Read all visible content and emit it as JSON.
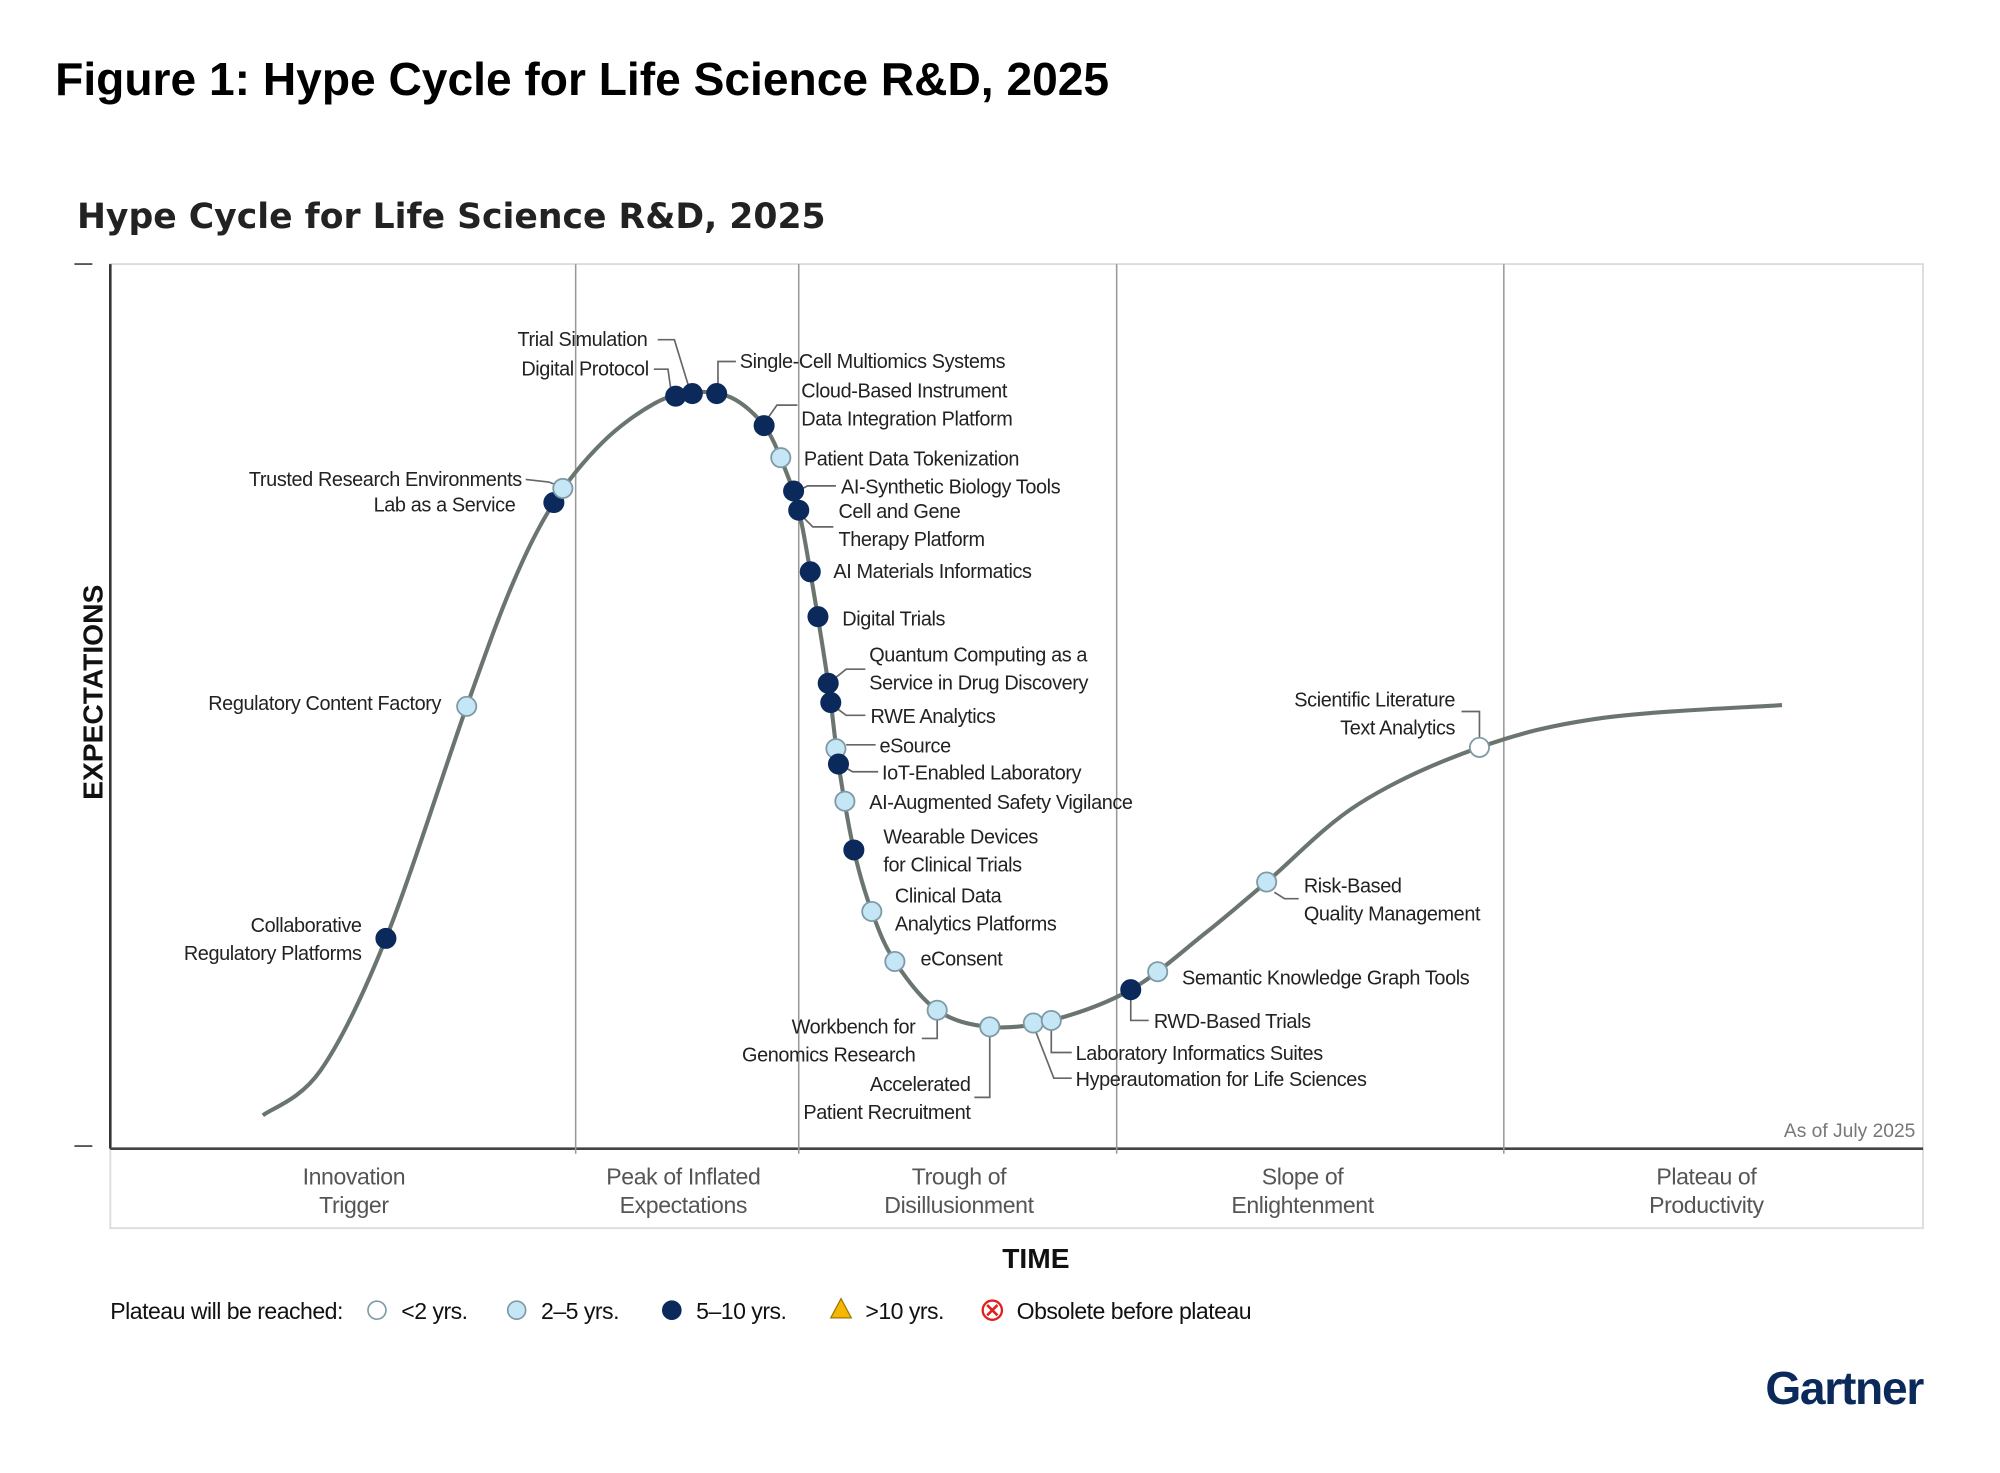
{
  "figure_title": "Figure 1: Hype Cycle for Life Science R&D, 2025",
  "brand": "Gartner",
  "chart_data": {
    "type": "scatter",
    "subtype": "hype-cycle",
    "title": "Hype Cycle for Life Science R&D, 2025",
    "xlabel": "TIME",
    "ylabel": "EXPECTATIONS",
    "annotation": "As of July 2025",
    "grid": false,
    "phases": [
      {
        "lines": [
          "Innovation",
          "Trigger"
        ]
      },
      {
        "lines": [
          "Peak of Inflated",
          "Expectations"
        ]
      },
      {
        "lines": [
          "Trough of",
          "Disillusionment"
        ]
      },
      {
        "lines": [
          "Slope of",
          "Enlightenment"
        ]
      },
      {
        "lines": [
          "Plateau of",
          "Productivity"
        ]
      }
    ],
    "legend": {
      "title": "Plateau will be reached:",
      "placement": "bottom",
      "entries": [
        {
          "key": "lt2",
          "label": "<2 yrs.",
          "symbol": "circle",
          "color": "#ffffff"
        },
        {
          "key": "2to5",
          "label": "2–5 yrs.",
          "symbol": "circle",
          "color": "#c5e6f5"
        },
        {
          "key": "5to10",
          "label": "5–10 yrs.",
          "symbol": "circle",
          "color": "#0b2a5b"
        },
        {
          "key": "gt10",
          "label": ">10 yrs.",
          "symbol": "triangle",
          "color": "#f5b800"
        },
        {
          "key": "obsolete",
          "label": "Obsolete before plateau",
          "symbol": "x-circle",
          "color": "#e02020"
        }
      ]
    },
    "items": [
      {
        "lines": [
          "Collaborative",
          "Regulatory Platforms"
        ],
        "phase": "Innovation Trigger",
        "plateau": "5to10"
      },
      {
        "lines": [
          "Regulatory Content Factory"
        ],
        "phase": "Innovation Trigger",
        "plateau": "2to5"
      },
      {
        "lines": [
          "Lab as a Service"
        ],
        "phase": "Innovation Trigger",
        "plateau": "5to10"
      },
      {
        "lines": [
          "Trusted Research Environments"
        ],
        "phase": "Innovation Trigger",
        "plateau": "2to5"
      },
      {
        "lines": [
          "Digital Protocol"
        ],
        "phase": "Peak of Inflated Expectations",
        "plateau": "5to10"
      },
      {
        "lines": [
          "Trial Simulation"
        ],
        "phase": "Peak of Inflated Expectations",
        "plateau": "5to10"
      },
      {
        "lines": [
          "Single-Cell Multiomics Systems"
        ],
        "phase": "Peak of Inflated Expectations",
        "plateau": "5to10"
      },
      {
        "lines": [
          "Cloud-Based Instrument",
          "Data Integration Platform"
        ],
        "phase": "Peak of Inflated Expectations",
        "plateau": "5to10"
      },
      {
        "lines": [
          "Patient Data Tokenization"
        ],
        "phase": "Peak of Inflated Expectations",
        "plateau": "2to5"
      },
      {
        "lines": [
          "AI-Synthetic Biology Tools"
        ],
        "phase": "Peak of Inflated Expectations",
        "plateau": "5to10"
      },
      {
        "lines": [
          "Cell and Gene",
          "Therapy Platform"
        ],
        "phase": "Peak of Inflated Expectations",
        "plateau": "5to10"
      },
      {
        "lines": [
          "AI Materials Informatics"
        ],
        "phase": "Trough of Disillusionment",
        "plateau": "5to10"
      },
      {
        "lines": [
          "Digital Trials"
        ],
        "phase": "Trough of Disillusionment",
        "plateau": "5to10"
      },
      {
        "lines": [
          "Quantum Computing as a",
          "Service in Drug Discovery"
        ],
        "phase": "Trough of Disillusionment",
        "plateau": "5to10"
      },
      {
        "lines": [
          "RWE Analytics"
        ],
        "phase": "Trough of Disillusionment",
        "plateau": "5to10"
      },
      {
        "lines": [
          "eSource"
        ],
        "phase": "Trough of Disillusionment",
        "plateau": "2to5"
      },
      {
        "lines": [
          "IoT-Enabled Laboratory"
        ],
        "phase": "Trough of Disillusionment",
        "plateau": "5to10"
      },
      {
        "lines": [
          "AI-Augmented Safety Vigilance"
        ],
        "phase": "Trough of Disillusionment",
        "plateau": "2to5"
      },
      {
        "lines": [
          "Wearable Devices",
          "for Clinical Trials"
        ],
        "phase": "Trough of Disillusionment",
        "plateau": "5to10"
      },
      {
        "lines": [
          "Clinical Data",
          "Analytics Platforms"
        ],
        "phase": "Trough of Disillusionment",
        "plateau": "2to5"
      },
      {
        "lines": [
          "eConsent"
        ],
        "phase": "Trough of Disillusionment",
        "plateau": "2to5"
      },
      {
        "lines": [
          "Workbench for",
          "Genomics Research"
        ],
        "phase": "Trough of Disillusionment",
        "plateau": "2to5"
      },
      {
        "lines": [
          "Accelerated",
          "Patient Recruitment"
        ],
        "phase": "Trough of Disillusionment",
        "plateau": "2to5"
      },
      {
        "lines": [
          "Hyperautomation for Life Sciences"
        ],
        "phase": "Trough of Disillusionment",
        "plateau": "2to5"
      },
      {
        "lines": [
          "Laboratory Informatics Suites"
        ],
        "phase": "Trough of Disillusionment",
        "plateau": "2to5"
      },
      {
        "lines": [
          "RWD-Based Trials"
        ],
        "phase": "Slope of Enlightenment",
        "plateau": "5to10"
      },
      {
        "lines": [
          "Semantic Knowledge Graph Tools"
        ],
        "phase": "Slope of Enlightenment",
        "plateau": "2to5"
      },
      {
        "lines": [
          "Risk-Based",
          "Quality Management"
        ],
        "phase": "Slope of Enlightenment",
        "plateau": "2to5"
      },
      {
        "lines": [
          "Scientific Literature",
          "Text Analytics"
        ],
        "phase": "Slope of Enlightenment",
        "plateau": "lt2"
      }
    ]
  }
}
